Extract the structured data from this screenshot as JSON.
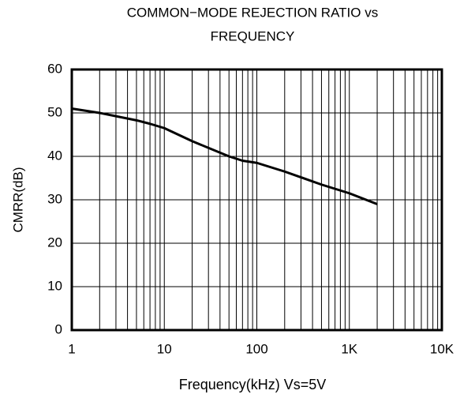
{
  "chart_data": {
    "type": "line",
    "title": [
      "COMMON−MODE REJECTION RATIO vs",
      "FREQUENCY"
    ],
    "xlabel": "Frequency(kHz) Vs=5V",
    "ylabel": "CMRR(dB)",
    "x": [
      1,
      2,
      5,
      7,
      10,
      20,
      50,
      70,
      100,
      200,
      500,
      1000,
      2000
    ],
    "series": [
      {
        "name": "CMRR",
        "color": "#000000",
        "values": [
          51,
          50,
          48.3,
          47.5,
          46.5,
          43.5,
          40,
          39,
          38.5,
          36.5,
          33.5,
          31.5,
          29
        ]
      }
    ],
    "xscale": "log",
    "xlim": [
      1,
      10000
    ],
    "xticks": [
      1,
      10,
      100,
      {
        "value": 1000,
        "label": "1K"
      },
      {
        "value": 10000,
        "label": "10K"
      }
    ],
    "xminorticks": [
      2,
      3,
      4,
      5,
      6,
      7,
      8,
      9,
      20,
      30,
      40,
      50,
      60,
      70,
      80,
      90,
      200,
      300,
      400,
      500,
      600,
      700,
      800,
      900,
      2000,
      3000,
      4000,
      5000,
      6000,
      7000,
      8000,
      9000
    ],
    "ylim": [
      0,
      60
    ],
    "yticks": [
      0,
      10,
      20,
      30,
      40,
      50,
      60
    ],
    "grid": true
  }
}
